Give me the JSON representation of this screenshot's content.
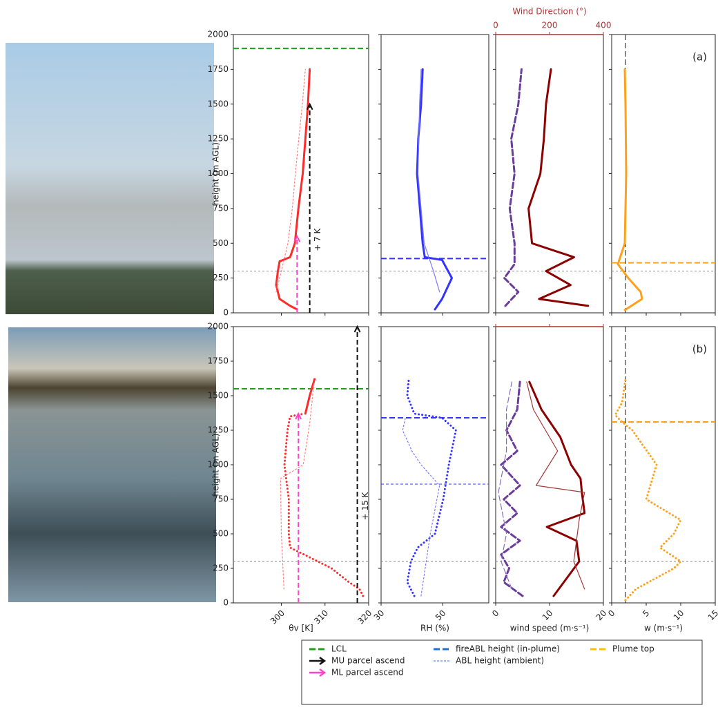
{
  "chart_data": [
    {
      "type": "line",
      "xlim": [
        289,
        320
      ],
      "xticks": [
        300,
        310,
        320
      ],
      "show_xticklabels": false,
      "ylim": [
        0,
        2000
      ],
      "yticks": [
        0,
        250,
        500,
        750,
        1000,
        1250,
        1500,
        1750,
        2000
      ],
      "show_yticklabels": true,
      "ylabel": "height (m AGL)",
      "series": [
        {
          "color": "#ff2a2a",
          "weight": "heavy",
          "dash": "solid",
          "y": [
            25,
            50,
            100,
            200,
            300,
            370,
            400,
            500,
            750,
            1000,
            1250,
            1500,
            1750
          ],
          "x": [
            303.6,
            302,
            299.6,
            298.8,
            299.2,
            299.6,
            302,
            303.1,
            303.9,
            304.9,
            305.5,
            306.1,
            306.5
          ]
        },
        {
          "color": "#ff8080",
          "weight": "light",
          "dash": "dotted",
          "y": [
            150,
            300,
            500,
            750,
            1000,
            1250,
            1500,
            1750
          ],
          "x": [
            298.8,
            300,
            301.5,
            302.5,
            303.2,
            304,
            304.8,
            305.5
          ]
        }
      ],
      "hlines": [
        {
          "value": 1900,
          "color": "#1f9e1f",
          "dash": "dashed"
        },
        {
          "value": 300,
          "color": "#888888",
          "dash": "dotted"
        }
      ],
      "arrows": [
        {
          "x": 306.5,
          "y0": 0,
          "y1": 1500,
          "color": "#111111",
          "label": "+ 7 K"
        },
        {
          "x": 303.6,
          "y0": 0,
          "y1": 550,
          "color": "#ff44cc"
        }
      ]
    },
    {
      "type": "line",
      "xlim": [
        30,
        65
      ],
      "xticks": [
        30,
        50
      ],
      "show_xticklabels": false,
      "ylim": [
        0,
        2000
      ],
      "yticks": [
        0,
        250,
        500,
        750,
        1000,
        1250,
        1500,
        1750,
        2000
      ],
      "show_yticklabels": false,
      "series": [
        {
          "color": "#3333ff",
          "weight": "heavy",
          "dash": "solid",
          "y": [
            25,
            100,
            250,
            380,
            400,
            500,
            750,
            1000,
            1250,
            1500,
            1750
          ],
          "x": [
            47.5,
            49.8,
            53,
            49.8,
            44.2,
            43.5,
            42.6,
            41.7,
            42.1,
            43,
            43.5
          ]
        },
        {
          "color": "#7a7aff",
          "weight": "light",
          "dash": "solid",
          "y": [
            150,
            300,
            500,
            1000,
            1500,
            1750
          ],
          "x": [
            49,
            47,
            44,
            42,
            42.5,
            43
          ]
        }
      ],
      "hlines": [
        {
          "value": 390,
          "color": "#3333ff",
          "dash": "dashed"
        },
        {
          "value": 300,
          "color": "#888888",
          "dash": "dotted"
        }
      ]
    },
    {
      "type": "line",
      "xlim": [
        0,
        20
      ],
      "xticks": [
        0,
        10,
        20
      ],
      "show_xticklabels": false,
      "x2lim": [
        0,
        400
      ],
      "x2ticks": [
        0,
        200,
        400
      ],
      "show_x2ticklabels": true,
      "x2label": "Wind Direction (°)",
      "x2color": "#b03030",
      "ylim": [
        0,
        2000
      ],
      "yticks": [
        0,
        250,
        500,
        750,
        1000,
        1250,
        1500,
        1750,
        2000
      ],
      "show_yticklabels": false,
      "series": [
        {
          "color": "#6a3d9a",
          "weight": "heavy",
          "dash": "dashed",
          "y": [
            50,
            150,
            250,
            350,
            500,
            750,
            1000,
            1250,
            1500,
            1750
          ],
          "x": [
            1.8,
            4.2,
            1.6,
            3.5,
            3.5,
            2.6,
            3.5,
            2.9,
            4.2,
            4.8
          ]
        },
        {
          "color": "#8b0000",
          "weight": "heavy",
          "dash": "solid",
          "axis": "x2",
          "y": [
            50,
            100,
            200,
            300,
            400,
            500,
            750,
            1000,
            1250,
            1500,
            1750
          ],
          "x": [
            343,
            161,
            278,
            187,
            291,
            135,
            122,
            166,
            179,
            187,
            205
          ]
        }
      ],
      "hlines": [
        {
          "value": 300,
          "color": "#888888",
          "dash": "dotted"
        }
      ]
    },
    {
      "type": "line",
      "xlim": [
        0,
        15
      ],
      "xticks": [
        0,
        5,
        10,
        15
      ],
      "show_xticklabels": false,
      "ylim": [
        0,
        2000
      ],
      "yticks": [
        0,
        250,
        500,
        750,
        1000,
        1250,
        1500,
        1750,
        2000
      ],
      "show_yticklabels": false,
      "annotation": "(a)",
      "series": [
        {
          "color": "#ffa01a",
          "weight": "heavy",
          "dash": "solid",
          "y": [
            20,
            100,
            150,
            250,
            350,
            500,
            1000,
            1500,
            1750
          ],
          "x": [
            1.9,
            4.4,
            4.2,
            2.4,
            0.9,
            1.9,
            2.1,
            2,
            1.9
          ]
        }
      ],
      "hlines": [
        {
          "value": 360,
          "color": "#ffa01a",
          "dash": "dashed"
        },
        {
          "value": 300,
          "color": "#888888",
          "dash": "dotted"
        }
      ],
      "vlines": [
        {
          "value": 2,
          "color": "#111111",
          "dash": "dashed"
        }
      ]
    },
    {
      "type": "line",
      "xlim": [
        289,
        320
      ],
      "xticks": [
        300,
        310,
        320
      ],
      "show_xticklabels": true,
      "xlabel": "θv [K]",
      "ylim": [
        0,
        2000
      ],
      "yticks": [
        0,
        250,
        500,
        750,
        1000,
        1250,
        1500,
        1750,
        2000
      ],
      "show_yticklabels": true,
      "ylabel": "height (m AGL)",
      "series": [
        {
          "color": "#ff2a2a",
          "weight": "heavy",
          "dash": "dotted",
          "y": [
            50,
            100,
            150,
            250,
            350,
            400,
            500,
            750,
            1000,
            1250,
            1350,
            1370
          ],
          "x": [
            318.7,
            317.9,
            315.5,
            311.5,
            305.2,
            302,
            301.7,
            301.7,
            300.7,
            301.4,
            302,
            305.2
          ]
        },
        {
          "color": "#ff2a2a",
          "weight": "heavy",
          "dash": "solid",
          "y": [
            1370,
            1500,
            1620
          ],
          "x": [
            305.5,
            306.5,
            307.6
          ]
        },
        {
          "color": "#ff8080",
          "weight": "light",
          "dash": "dotted",
          "y": [
            100,
            500,
            900,
            1000,
            1300,
            1600
          ],
          "x": [
            300.6,
            300,
            299.8,
            305,
            306.5,
            307.5
          ]
        }
      ],
      "hlines": [
        {
          "value": 1550,
          "color": "#1f9e1f",
          "dash": "dashed"
        },
        {
          "value": 300,
          "color": "#888888",
          "dash": "dotted"
        }
      ],
      "arrows": [
        {
          "x": 317.4,
          "y0": 0,
          "y1": 2000,
          "color": "#111111",
          "label": "+ 15 K"
        },
        {
          "x": 303.9,
          "y0": 0,
          "y1": 1370,
          "color": "#ff44cc"
        }
      ]
    },
    {
      "type": "line",
      "xlim": [
        30,
        65
      ],
      "xticks": [
        30,
        50
      ],
      "show_xticklabels": true,
      "xlabel": "RH (%)",
      "ylim": [
        0,
        2000
      ],
      "yticks": [
        0,
        250,
        500,
        750,
        1000,
        1250,
        1500,
        1750,
        2000
      ],
      "show_yticklabels": false,
      "series": [
        {
          "color": "#3333ff",
          "weight": "heavy",
          "dash": "dotted",
          "y": [
            50,
            150,
            300,
            400,
            500,
            750,
            1000,
            1250,
            1340,
            1370,
            1500,
            1620
          ],
          "x": [
            40.8,
            38.5,
            39.7,
            41.9,
            47.5,
            50.2,
            52,
            54.3,
            49.8,
            40.8,
            38.5,
            39
          ]
        },
        {
          "color": "#7a7aff",
          "weight": "light",
          "dash": "dotted",
          "y": [
            50,
            500,
            850,
            1000,
            1100,
            1250,
            1350
          ],
          "x": [
            43,
            46,
            49,
            43,
            40,
            37,
            38
          ]
        }
      ],
      "hlines": [
        {
          "value": 1340,
          "color": "#3333ff",
          "dash": "dashed"
        },
        {
          "value": 860,
          "color": "#3333ff",
          "dash": "thin"
        },
        {
          "value": 300,
          "color": "#888888",
          "dash": "dotted"
        }
      ]
    },
    {
      "type": "line",
      "xlim": [
        0,
        20
      ],
      "xticks": [
        0,
        10,
        20
      ],
      "show_xticklabels": true,
      "xlabel": "wind speed (m·s⁻¹)",
      "x2lim": [
        0,
        400
      ],
      "x2ticks": [
        0,
        200,
        400
      ],
      "show_x2ticklabels": false,
      "x2color": "#b03030",
      "ylim": [
        0,
        2000
      ],
      "yticks": [
        0,
        250,
        500,
        750,
        1000,
        1250,
        1500,
        1750,
        2000
      ],
      "show_yticklabels": false,
      "series": [
        {
          "color": "#6a3d9a",
          "weight": "heavy",
          "dash": "dashed",
          "y": [
            50,
            150,
            250,
            350,
            450,
            550,
            650,
            750,
            850,
            1000,
            1100,
            1250,
            1400,
            1600
          ],
          "x": [
            5,
            1.5,
            2.5,
            1,
            4.5,
            1,
            4,
            1.5,
            4.5,
            1,
            4,
            2,
            4,
            4.5
          ]
        },
        {
          "color": "#8a6abf",
          "weight": "light",
          "dash": "dashed",
          "y": [
            100,
            300,
            500,
            800,
            1100,
            1400,
            1600
          ],
          "x": [
            3,
            1,
            2,
            0.5,
            2,
            2,
            3
          ]
        },
        {
          "color": "#8b0000",
          "weight": "heavy",
          "dash": "solid",
          "axis": "x2",
          "y": [
            50,
            300,
            450,
            550,
            650,
            800,
            900,
            1000,
            1200,
            1400,
            1600
          ],
          "x": [
            215,
            310,
            300,
            190,
            330,
            320,
            315,
            280,
            240,
            170,
            125
          ]
        },
        {
          "color": "#a33a3a",
          "weight": "light",
          "dash": "solid",
          "axis": "x2",
          "y": [
            100,
            300,
            600,
            800,
            850,
            1100,
            1400,
            1600
          ],
          "x": [
            330,
            290,
            310,
            330,
            150,
            230,
            140,
            115
          ]
        }
      ],
      "hlines": [
        {
          "value": 300,
          "color": "#888888",
          "dash": "dotted"
        }
      ]
    },
    {
      "type": "line",
      "xlim": [
        0,
        15
      ],
      "xticks": [
        0,
        5,
        10,
        15
      ],
      "show_xticklabels": true,
      "xlabel": "w (m·s⁻¹)",
      "ylim": [
        0,
        2000
      ],
      "yticks": [
        0,
        250,
        500,
        750,
        1000,
        1250,
        1500,
        1750,
        2000
      ],
      "show_yticklabels": false,
      "annotation": "(b)",
      "series": [
        {
          "color": "#ffa01a",
          "weight": "heavy",
          "dash": "dotted",
          "y": [
            20,
            100,
            250,
            300,
            400,
            500,
            600,
            750,
            1000,
            1250,
            1310,
            1360,
            1450,
            1620
          ],
          "x": [
            2,
            3.5,
            9,
            10,
            7,
            9,
            10,
            5,
            6.5,
            3,
            1.5,
            0.5,
            1.5,
            2
          ]
        }
      ],
      "hlines": [
        {
          "value": 1310,
          "color": "#ffa01a",
          "dash": "dashed"
        },
        {
          "value": 300,
          "color": "#888888",
          "dash": "dotted"
        }
      ],
      "vlines": [
        {
          "value": 2,
          "color": "#111111",
          "dash": "dashed"
        }
      ]
    }
  ],
  "legend": {
    "items": [
      {
        "label": "LCL",
        "color": "#1f9e1f",
        "kind": "dashed"
      },
      {
        "label": "MU parcel ascend",
        "color": "#111111",
        "kind": "arrow"
      },
      {
        "label": "ML parcel ascend",
        "color": "#ff44cc",
        "kind": "arrow"
      },
      {
        "label": "fireABL height (in-plume)",
        "color": "#1f6fd0",
        "kind": "dashed"
      },
      {
        "label": "ABL height (ambient)",
        "color": "#1f6fd0",
        "kind": "thin"
      },
      {
        "label": "Plume top",
        "color": "#ffc000",
        "kind": "dashed"
      }
    ]
  }
}
